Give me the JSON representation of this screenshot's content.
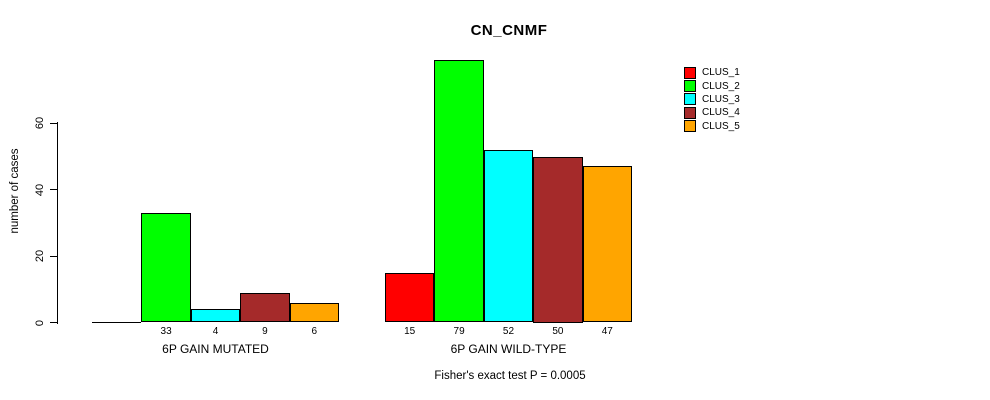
{
  "chart_data": {
    "type": "bar",
    "title": "CN_CNMF",
    "ylabel": "number of cases",
    "yticks": [
      0,
      20,
      40,
      60
    ],
    "ylim": [
      0,
      80
    ],
    "grid": false,
    "legend_position": "right",
    "series": [
      {
        "name": "CLUS_1",
        "color": "#FF0000"
      },
      {
        "name": "CLUS_2",
        "color": "#00FF00"
      },
      {
        "name": "CLUS_3",
        "color": "#00FFFF"
      },
      {
        "name": "CLUS_4",
        "color": "#A52A2A"
      },
      {
        "name": "CLUS_5",
        "color": "#FFA500"
      }
    ],
    "groups": [
      {
        "label": "6P GAIN MUTATED",
        "values": [
          0,
          33,
          4,
          9,
          6
        ],
        "bar_labels": [
          "",
          "33",
          "4",
          "9",
          "6"
        ]
      },
      {
        "label": "6P GAIN WILD-TYPE",
        "values": [
          15,
          79,
          52,
          50,
          47
        ],
        "bar_labels": [
          "15",
          "79",
          "52",
          "50",
          "47"
        ]
      }
    ],
    "footnote": "Fisher's exact test P = 0.0005"
  }
}
